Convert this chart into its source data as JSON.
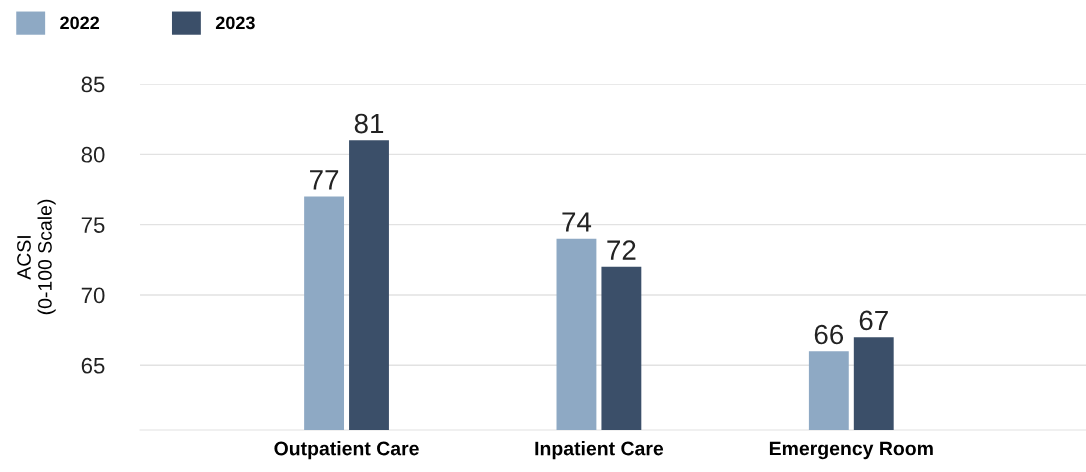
{
  "chart_data": {
    "type": "bar",
    "ylabel": "ACSI\n(0-100 Scale)",
    "categories": [
      "Outpatient Care",
      "Inpatient Care",
      "Emergency Room"
    ],
    "series": [
      {
        "name": "2022",
        "color": "#8ea9c4",
        "values": [
          77,
          74,
          66
        ]
      },
      {
        "name": "2023",
        "color": "#3b4f69",
        "values": [
          81,
          72,
          67
        ]
      }
    ],
    "ylim": [
      60.4,
      85
    ],
    "yticks": [
      65,
      70,
      75,
      80,
      85
    ],
    "grid": "y",
    "legend": "top left",
    "data_labels": true
  }
}
